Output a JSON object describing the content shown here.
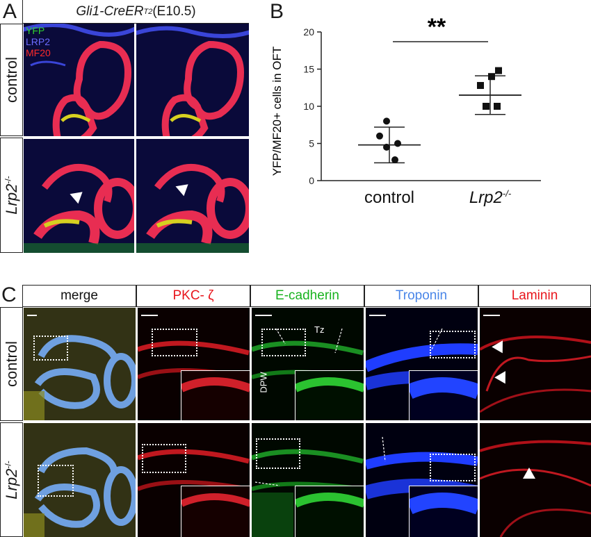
{
  "panel_a": {
    "letter": "A",
    "header_gene": "Gli1-CreER",
    "header_sup": "T2",
    "header_stage": " (E10.5)",
    "legend": [
      "YFP",
      "LRP2",
      "MF20"
    ],
    "legend_colors": [
      "#2fd02f",
      "#6b6bff",
      "#ff2a2a"
    ],
    "row_labels": {
      "control": "control",
      "mutant_base": "Lrp2",
      "mutant_sup": "-/-"
    }
  },
  "panel_b": {
    "letter": "B",
    "significance": "**"
  },
  "chart_data": {
    "type": "scatter",
    "ylabel": "YFP/MF20+ cells in OFT",
    "xlabel": "",
    "categories": [
      "control",
      "Lrp2-/-"
    ],
    "ylim": [
      0,
      20
    ],
    "yticks": [
      0,
      5,
      10,
      15,
      20
    ],
    "series": [
      {
        "points": [
          8.0,
          6.0,
          5.0,
          4.5,
          2.8
        ],
        "mean": 4.8,
        "sd_low": 2.4,
        "sd_high": 7.2,
        "marker": "circle"
      },
      {
        "points": [
          14.8,
          14.0,
          12.8,
          10.0,
          10.0
        ],
        "mean": 11.5,
        "sd_low": 8.9,
        "sd_high": 14.1,
        "marker": "square"
      }
    ],
    "significance": "**"
  },
  "panel_c": {
    "letter": "C",
    "columns": [
      "merge",
      "PKC- ζ",
      "E-cadherin",
      "Troponin",
      "Laminin"
    ],
    "column_colors": [
      "#111111",
      "#e8141b",
      "#19b31f",
      "#4a86e8",
      "#e8141b"
    ],
    "row_labels": {
      "control": "control",
      "mutant_base": "Lrp2",
      "mutant_sup": "-/-"
    },
    "annotations": {
      "tz": "Tz",
      "dpw": "DPW"
    }
  }
}
